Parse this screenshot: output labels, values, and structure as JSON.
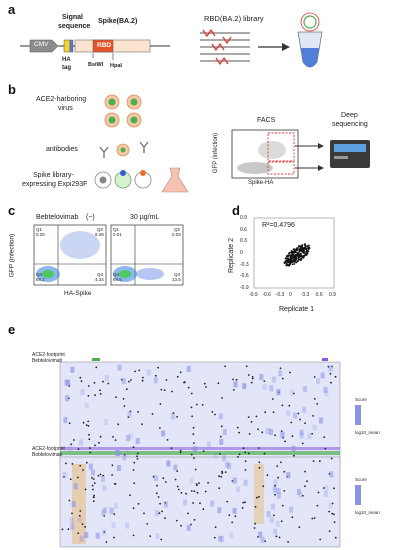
{
  "panels": {
    "a": "a",
    "b": "b",
    "c": "c",
    "d": "d",
    "e": "e"
  },
  "a": {
    "cmv": "CMV",
    "signal": "Signal",
    "sequence": "sequence",
    "spike": "Spike(BA.2)",
    "rbd": "RBD",
    "ha": "HA",
    "tag": "tag",
    "bsiwi": "BsiWI",
    "hpai": "HpaI",
    "library": "RBD(BA.2) library"
  },
  "b": {
    "ace2_virus_1": "ACE2-harboring",
    "ace2_virus_2": "virus",
    "antibodies": "antibodies",
    "spike_lib_1": "Spike library-",
    "spike_lib_2": "expressing Expi293F",
    "facs": "FACS",
    "deep_1": "Deep",
    "deep_2": "sequencing",
    "facs_y": "GFP (infection)",
    "facs_x": "Spike-HA"
  },
  "c": {
    "antibody": "Bebtelovimab",
    "cond1": "(−)",
    "cond2": "30 µg/mL",
    "ylabel": "GFP (infection)",
    "xlabel": "HA-Spike",
    "q1a": "Q1",
    "q1a_v": "0.20",
    "q2a": "Q2",
    "q2a_v": "9.28",
    "q4a": "Q4",
    "q4a_v": "86.2",
    "q3a": "Q3",
    "q3a_v": "4.34",
    "q1b": "Q1",
    "q1b_v": "0.01",
    "q2b": "Q2",
    "q2b_v": "0.03",
    "q4b": "Q4",
    "q4b_v": "86.5",
    "q3b": "Q3",
    "q3b_v": "13.5"
  },
  "chart_data": {
    "type": "scatter",
    "annotation": "R²=0.4796",
    "xlabel": "Replicate 1",
    "ylabel": "Replicate 2",
    "xlim": [
      -0.9,
      0.9
    ],
    "ylim": [
      -0.9,
      0.9
    ],
    "xticks": [
      "-0.9",
      "-0.6",
      "-0.3",
      "0",
      "0.3",
      "0.6",
      "0.9"
    ],
    "yticks": [
      "0.9",
      "0.6",
      "0.3",
      "0",
      "-0.3",
      "-0.6",
      "-0.9"
    ]
  },
  "e": {
    "ace2_footprint": "ACE2-footprint",
    "bebtelovimab": "Bebtelovimab",
    "legend_title": "Score",
    "legend_sub": "log10_mean"
  },
  "colors": {
    "rbd": "#e8542a",
    "cmv": "#888888",
    "signal": "#f2d230",
    "spike": "#fbe3cf",
    "heat_blue": "#8a93e8",
    "heat_orange": "#e6b25a",
    "ace2_green": "#4caf50",
    "bebt_purple": "#8a5ad8"
  }
}
